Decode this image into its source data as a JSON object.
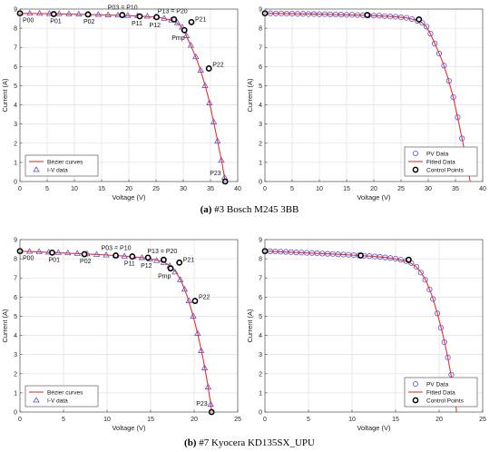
{
  "captions": {
    "a_label": "(a)",
    "a_text": " #3 Bosch M245 3BB",
    "b_label": "(b)",
    "b_text": " #7 Kyocera KD135SX_UPU"
  },
  "colors": {
    "fit_line": "#e8322c",
    "data_marker": "#5353e0",
    "control_point": "#000000",
    "grid": "#e3e3e3"
  },
  "chart_data": [
    {
      "type": "line",
      "panel": "a-left",
      "xlabel": "Voltage (V)",
      "ylabel": "Current (A)",
      "xlim": [
        0,
        40
      ],
      "ylim": [
        0,
        9
      ],
      "xticks": [
        0,
        5,
        10,
        15,
        20,
        25,
        30,
        35,
        40
      ],
      "yticks": [
        0,
        1,
        2,
        3,
        4,
        5,
        6,
        7,
        8,
        9
      ],
      "grid": true,
      "legend_position": "bottom-left",
      "legend": [
        {
          "label": "Bézier curves",
          "kind": "line",
          "color": "#e8322c"
        },
        {
          "label": "I-V data",
          "kind": "triangle",
          "color": "#5353e0"
        }
      ],
      "curve": [
        [
          0,
          8.78
        ],
        [
          5,
          8.76
        ],
        [
          10,
          8.73
        ],
        [
          15,
          8.7
        ],
        [
          20,
          8.66
        ],
        [
          24,
          8.6
        ],
        [
          26,
          8.54
        ],
        [
          27.5,
          8.44
        ],
        [
          28.7,
          8.32
        ],
        [
          29.6,
          8.1
        ],
        [
          30.3,
          7.76
        ],
        [
          31.0,
          7.33
        ],
        [
          31.8,
          6.83
        ],
        [
          32.7,
          6.2
        ],
        [
          33.6,
          5.42
        ],
        [
          34.6,
          4.4
        ],
        [
          35.5,
          3.22
        ],
        [
          36.4,
          1.98
        ],
        [
          37.2,
          0.85
        ],
        [
          37.7,
          0
        ]
      ],
      "markers": [
        [
          0,
          8.78
        ],
        [
          1.8,
          8.77
        ],
        [
          3.6,
          8.77
        ],
        [
          5.4,
          8.76
        ],
        [
          7.2,
          8.75
        ],
        [
          9,
          8.74
        ],
        [
          10.8,
          8.73
        ],
        [
          12.6,
          8.72
        ],
        [
          14.4,
          8.71
        ],
        [
          16.2,
          8.69
        ],
        [
          18,
          8.68
        ],
        [
          19.8,
          8.66
        ],
        [
          21.6,
          8.64
        ],
        [
          23.4,
          8.62
        ],
        [
          25,
          8.58
        ],
        [
          26.5,
          8.51
        ],
        [
          27.8,
          8.42
        ],
        [
          28.9,
          8.28
        ],
        [
          29.8,
          8.05
        ],
        [
          30.6,
          7.6
        ],
        [
          31.4,
          7.1
        ],
        [
          32.3,
          6.5
        ],
        [
          33.2,
          5.8
        ],
        [
          34.0,
          5.0
        ],
        [
          34.8,
          4.1
        ],
        [
          35.6,
          3.1
        ],
        [
          36.3,
          2.1
        ],
        [
          37.0,
          1.1
        ],
        [
          37.6,
          0.2
        ]
      ],
      "control_points": [
        {
          "label": "P00",
          "x": 0,
          "y": 8.78
        },
        {
          "label": "P01",
          "x": 6.2,
          "y": 8.74
        },
        {
          "label": "P02",
          "x": 12.5,
          "y": 8.72
        },
        {
          "label": "P03 = P10",
          "x": 18.8,
          "y": 8.69
        },
        {
          "label": "P11",
          "x": 22.0,
          "y": 8.62
        },
        {
          "label": "P12",
          "x": 25.1,
          "y": 8.58
        },
        {
          "label": "P13 = P20",
          "x": 28.3,
          "y": 8.46
        },
        {
          "label": "Pmp",
          "x": 30.2,
          "y": 7.9
        },
        {
          "label": "P21",
          "x": 31.5,
          "y": 8.32
        },
        {
          "label": "P22",
          "x": 34.7,
          "y": 5.9
        },
        {
          "label": "P23",
          "x": 37.7,
          "y": 0
        }
      ]
    },
    {
      "type": "line",
      "panel": "a-right",
      "xlabel": "Voltage (V)",
      "ylabel": "Current (A)",
      "xlim": [
        0,
        40
      ],
      "ylim": [
        0,
        9
      ],
      "xticks": [
        0,
        5,
        10,
        15,
        20,
        25,
        30,
        35,
        40
      ],
      "yticks": [
        0,
        1,
        2,
        3,
        4,
        5,
        6,
        7,
        8,
        9
      ],
      "grid": true,
      "legend_position": "bottom-right",
      "legend": [
        {
          "label": "PV Data",
          "kind": "circle",
          "color": "#5353e0"
        },
        {
          "label": "Fitted Data",
          "kind": "line",
          "color": "#e8322c"
        },
        {
          "label": "Control Points",
          "kind": "circle",
          "color": "#000000"
        }
      ],
      "curve": [
        [
          0,
          8.78
        ],
        [
          5,
          8.76
        ],
        [
          10,
          8.73
        ],
        [
          15,
          8.7
        ],
        [
          20,
          8.66
        ],
        [
          24,
          8.6
        ],
        [
          26,
          8.54
        ],
        [
          27.5,
          8.44
        ],
        [
          28.7,
          8.32
        ],
        [
          29.6,
          8.1
        ],
        [
          30.3,
          7.76
        ],
        [
          31.0,
          7.33
        ],
        [
          31.8,
          6.83
        ],
        [
          32.7,
          6.2
        ],
        [
          33.6,
          5.42
        ],
        [
          34.6,
          4.4
        ],
        [
          35.5,
          3.22
        ],
        [
          36.4,
          1.98
        ],
        [
          37.2,
          0.85
        ],
        [
          37.7,
          0
        ]
      ],
      "markers": [
        [
          0,
          8.78
        ],
        [
          1,
          8.78
        ],
        [
          2,
          8.77
        ],
        [
          3,
          8.77
        ],
        [
          4,
          8.76
        ],
        [
          5,
          8.76
        ],
        [
          6,
          8.75
        ],
        [
          7,
          8.75
        ],
        [
          8,
          8.74
        ],
        [
          9,
          8.74
        ],
        [
          10,
          8.73
        ],
        [
          11,
          8.73
        ],
        [
          12,
          8.72
        ],
        [
          13,
          8.72
        ],
        [
          14,
          8.71
        ],
        [
          15,
          8.7
        ],
        [
          16,
          8.7
        ],
        [
          17,
          8.69
        ],
        [
          18,
          8.68
        ],
        [
          19,
          8.67
        ],
        [
          20,
          8.66
        ],
        [
          21,
          8.65
        ],
        [
          22,
          8.63
        ],
        [
          23,
          8.61
        ],
        [
          24,
          8.6
        ],
        [
          25,
          8.57
        ],
        [
          26,
          8.54
        ],
        [
          27,
          8.48
        ],
        [
          28,
          8.39
        ],
        [
          28.9,
          8.28
        ],
        [
          29.7,
          8.08
        ],
        [
          30.4,
          7.72
        ],
        [
          31.2,
          7.2
        ],
        [
          32.0,
          6.68
        ],
        [
          32.9,
          6.05
        ],
        [
          33.8,
          5.25
        ],
        [
          34.6,
          4.4
        ],
        [
          35.4,
          3.35
        ],
        [
          36.2,
          2.25
        ],
        [
          36.9,
          1.2
        ]
      ],
      "control_points": [
        {
          "x": 0,
          "y": 8.78
        },
        {
          "x": 18.8,
          "y": 8.69
        },
        {
          "x": 28.3,
          "y": 8.46
        }
      ]
    },
    {
      "type": "line",
      "panel": "b-left",
      "xlabel": "Voltage (V)",
      "ylabel": "Current (A)",
      "xlim": [
        0,
        25
      ],
      "ylim": [
        0,
        9
      ],
      "xticks": [
        0,
        5,
        10,
        15,
        20,
        25
      ],
      "yticks": [
        0,
        1,
        2,
        3,
        4,
        5,
        6,
        7,
        8,
        9
      ],
      "grid": true,
      "legend_position": "bottom-left",
      "legend": [
        {
          "label": "Bézier curves",
          "kind": "line",
          "color": "#e8322c"
        },
        {
          "label": "I-V data",
          "kind": "triangle",
          "color": "#5353e0"
        }
      ],
      "curve": [
        [
          0,
          8.4
        ],
        [
          3,
          8.34
        ],
        [
          6,
          8.28
        ],
        [
          9,
          8.22
        ],
        [
          12,
          8.14
        ],
        [
          14,
          8.06
        ],
        [
          15.5,
          7.95
        ],
        [
          16.5,
          7.83
        ],
        [
          17.3,
          7.62
        ],
        [
          18.0,
          7.25
        ],
        [
          18.6,
          6.75
        ],
        [
          19.2,
          6.05
        ],
        [
          19.8,
          5.15
        ],
        [
          20.4,
          4.1
        ],
        [
          21.0,
          2.85
        ],
        [
          21.5,
          1.6
        ],
        [
          21.9,
          0.45
        ],
        [
          22.0,
          0
        ]
      ],
      "markers": [
        [
          0,
          8.4
        ],
        [
          1.1,
          8.38
        ],
        [
          2.2,
          8.36
        ],
        [
          3.3,
          8.34
        ],
        [
          4.4,
          8.32
        ],
        [
          5.5,
          8.3
        ],
        [
          6.6,
          8.27
        ],
        [
          7.7,
          8.25
        ],
        [
          8.8,
          8.22
        ],
        [
          9.9,
          8.19
        ],
        [
          11,
          8.16
        ],
        [
          12,
          8.13
        ],
        [
          13,
          8.1
        ],
        [
          14,
          8.05
        ],
        [
          14.9,
          7.98
        ],
        [
          15.7,
          7.9
        ],
        [
          16.5,
          7.8
        ],
        [
          17.2,
          7.62
        ],
        [
          17.8,
          7.3
        ],
        [
          18.4,
          6.9
        ],
        [
          18.9,
          6.4
        ],
        [
          19.4,
          5.8
        ],
        [
          19.9,
          5.0
        ],
        [
          20.4,
          4.1
        ],
        [
          20.8,
          3.2
        ],
        [
          21.2,
          2.3
        ],
        [
          21.6,
          1.3
        ],
        [
          21.9,
          0.4
        ]
      ],
      "control_points": [
        {
          "label": "P00",
          "x": 0,
          "y": 8.4
        },
        {
          "label": "P01",
          "x": 3.7,
          "y": 8.32
        },
        {
          "label": "P02",
          "x": 7.4,
          "y": 8.24
        },
        {
          "label": "P03 = P10",
          "x": 11.0,
          "y": 8.17
        },
        {
          "label": "P11",
          "x": 12.9,
          "y": 8.12
        },
        {
          "label": "P12",
          "x": 14.7,
          "y": 8.06
        },
        {
          "label": "P13 = P20",
          "x": 16.5,
          "y": 7.95
        },
        {
          "label": "Pmp",
          "x": 17.3,
          "y": 7.5
        },
        {
          "label": "P21",
          "x": 18.3,
          "y": 7.8
        },
        {
          "label": "P22",
          "x": 20.1,
          "y": 5.8
        },
        {
          "label": "P23",
          "x": 22.0,
          "y": 0
        }
      ]
    },
    {
      "type": "line",
      "panel": "b-right",
      "xlabel": "Voltage (V)",
      "ylabel": "Current (A)",
      "xlim": [
        0,
        25
      ],
      "ylim": [
        0,
        9
      ],
      "xticks": [
        0,
        5,
        10,
        15,
        20,
        25
      ],
      "yticks": [
        0,
        1,
        2,
        3,
        4,
        5,
        6,
        7,
        8,
        9
      ],
      "grid": true,
      "legend_position": "bottom-right",
      "legend": [
        {
          "label": "PV Data",
          "kind": "circle",
          "color": "#5353e0"
        },
        {
          "label": "Fitted Data",
          "kind": "line",
          "color": "#e8322c"
        },
        {
          "label": "Control Points",
          "kind": "circle",
          "color": "#000000"
        }
      ],
      "curve": [
        [
          0,
          8.4
        ],
        [
          3,
          8.34
        ],
        [
          6,
          8.28
        ],
        [
          9,
          8.22
        ],
        [
          12,
          8.14
        ],
        [
          14,
          8.06
        ],
        [
          15.5,
          7.95
        ],
        [
          16.5,
          7.83
        ],
        [
          17.3,
          7.62
        ],
        [
          18.0,
          7.25
        ],
        [
          18.6,
          6.75
        ],
        [
          19.2,
          6.05
        ],
        [
          19.8,
          5.15
        ],
        [
          20.4,
          4.1
        ],
        [
          21.0,
          2.85
        ],
        [
          21.5,
          1.6
        ],
        [
          21.9,
          0.45
        ],
        [
          22.0,
          0
        ]
      ],
      "markers": [
        [
          0,
          8.4
        ],
        [
          0.6,
          8.39
        ],
        [
          1.2,
          8.38
        ],
        [
          1.8,
          8.37
        ],
        [
          2.4,
          8.36
        ],
        [
          3,
          8.35
        ],
        [
          3.6,
          8.33
        ],
        [
          4.2,
          8.32
        ],
        [
          4.8,
          8.31
        ],
        [
          5.4,
          8.3
        ],
        [
          6,
          8.29
        ],
        [
          6.6,
          8.27
        ],
        [
          7.2,
          8.26
        ],
        [
          7.8,
          8.25
        ],
        [
          8.4,
          8.23
        ],
        [
          9,
          8.22
        ],
        [
          9.6,
          8.21
        ],
        [
          10.2,
          8.19
        ],
        [
          10.8,
          8.17
        ],
        [
          11.4,
          8.16
        ],
        [
          12,
          8.14
        ],
        [
          12.6,
          8.12
        ],
        [
          13.2,
          8.1
        ],
        [
          13.8,
          8.07
        ],
        [
          14.4,
          8.04
        ],
        [
          15.0,
          8.0
        ],
        [
          15.6,
          7.95
        ],
        [
          16.2,
          7.88
        ],
        [
          16.8,
          7.78
        ],
        [
          17.4,
          7.58
        ],
        [
          17.9,
          7.28
        ],
        [
          18.4,
          6.9
        ],
        [
          18.9,
          6.4
        ],
        [
          19.3,
          5.9
        ],
        [
          19.8,
          5.15
        ],
        [
          20.2,
          4.4
        ],
        [
          20.6,
          3.65
        ],
        [
          21.0,
          2.85
        ],
        [
          21.4,
          1.95
        ],
        [
          21.7,
          1.2
        ]
      ],
      "control_points": [
        {
          "x": 0,
          "y": 8.4
        },
        {
          "x": 11.0,
          "y": 8.17
        },
        {
          "x": 16.5,
          "y": 7.95
        }
      ]
    }
  ]
}
